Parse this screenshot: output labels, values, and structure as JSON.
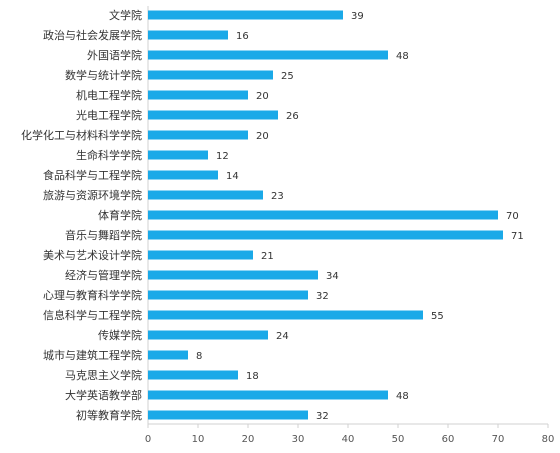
{
  "chart_data": {
    "type": "bar",
    "orientation": "horizontal",
    "categories": [
      "文学院",
      "政治与社会发展学院",
      "外国语学院",
      "数学与统计学院",
      "机电工程学院",
      "光电工程学院",
      "化学化工与材料科学学院",
      "生命科学学院",
      "食品科学与工程学院",
      "旅游与资源环境学院",
      "体育学院",
      "音乐与舞蹈学院",
      "美术与艺术设计学院",
      "经济与管理学院",
      "心理与教育科学学院",
      "信息科学与工程学院",
      "传媒学院",
      "城市与建筑工程学院",
      "马克思主义学院",
      "大学英语教学部",
      "初等教育学院"
    ],
    "values": [
      39,
      16,
      48,
      25,
      20,
      26,
      20,
      12,
      14,
      23,
      70,
      71,
      21,
      34,
      32,
      55,
      24,
      8,
      18,
      48,
      32
    ],
    "title": "",
    "xlabel": "",
    "ylabel": "",
    "xlim": [
      0,
      80
    ],
    "xticks": [
      0,
      10,
      20,
      30,
      40,
      50,
      60,
      70,
      80
    ],
    "grid": false,
    "data_labels": true,
    "colors": {
      "bar": "#1aa9e8",
      "axis": "#d0d0d0"
    }
  }
}
